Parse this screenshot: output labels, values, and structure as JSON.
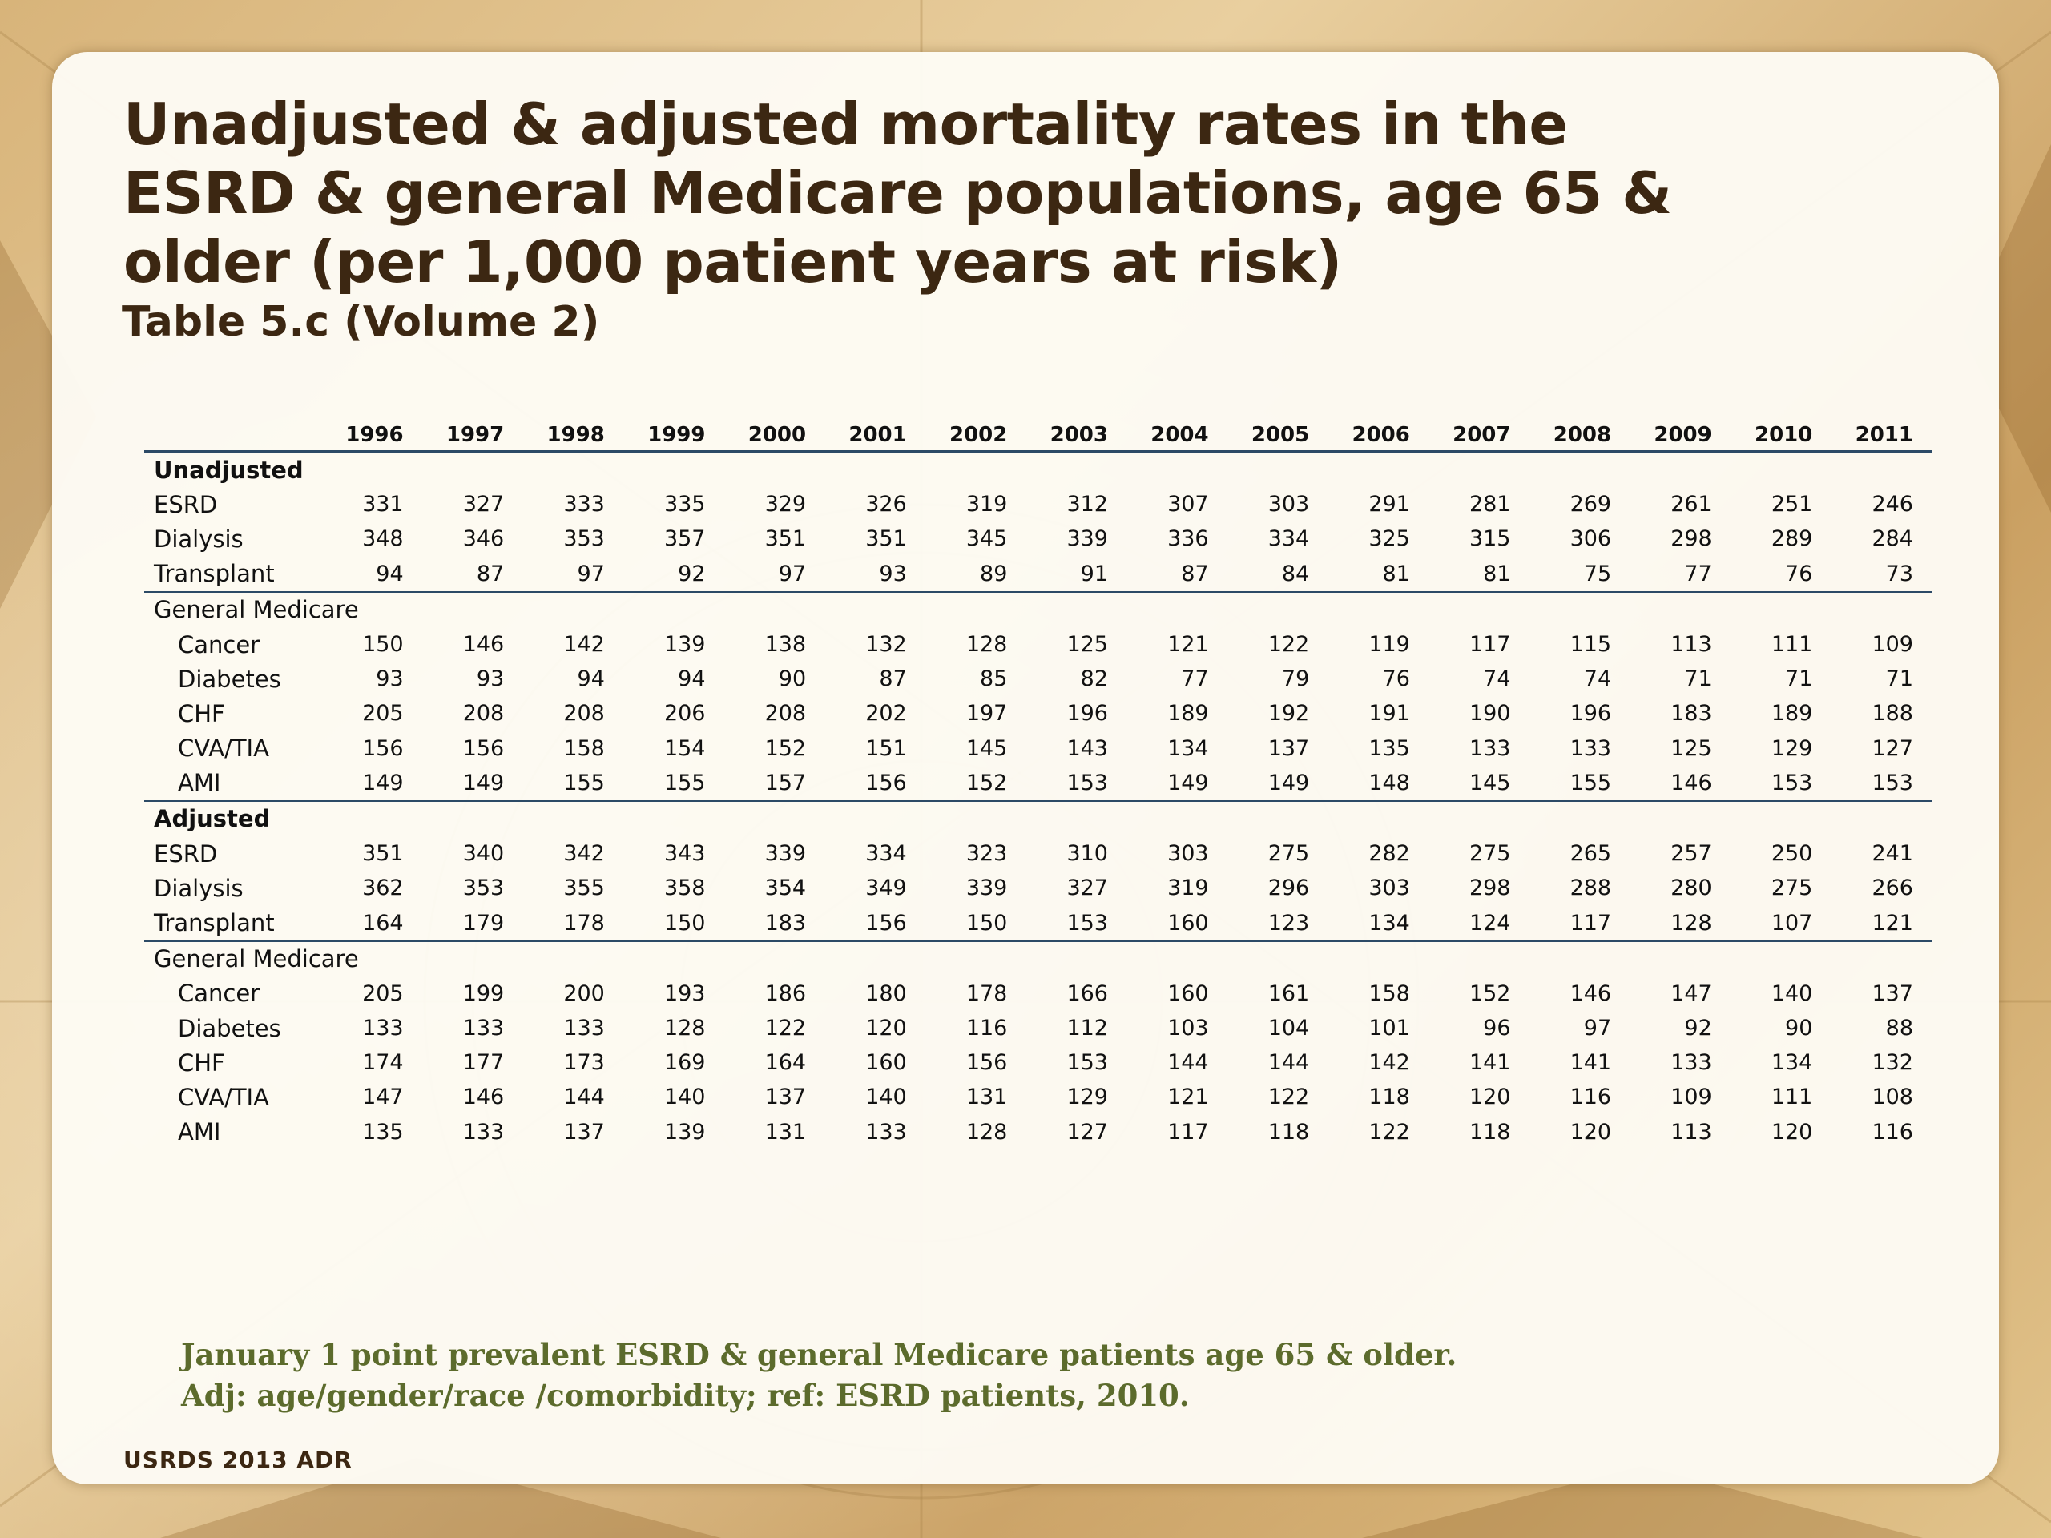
{
  "slide": {
    "title": "Unadjusted & adjusted mortality rates in the ESRD & general Medicare populations, age 65 & older (per 1,000 patient years at risk)",
    "subtitle": "Table 5.c (Volume 2)",
    "footnote_lines": [
      "January 1 point prevalent ESRD & general Medicare patients age 65 & older.",
      "Adj: age/gender/race /comorbidity; ref: ESRD patients, 2010."
    ],
    "source": "USRDS 2013 ADR"
  },
  "table": {
    "years": [
      "1996",
      "1997",
      "1998",
      "1999",
      "2000",
      "2001",
      "2002",
      "2003",
      "2004",
      "2005",
      "2006",
      "2007",
      "2008",
      "2009",
      "2010",
      "2011"
    ],
    "rows": [
      {
        "label": "Unadjusted",
        "type": "section",
        "values": []
      },
      {
        "label": "ESRD",
        "type": "row",
        "values": [
          "331",
          "327",
          "333",
          "335",
          "329",
          "326",
          "319",
          "312",
          "307",
          "303",
          "291",
          "281",
          "269",
          "261",
          "251",
          "246"
        ]
      },
      {
        "label": "Dialysis",
        "type": "row",
        "values": [
          "348",
          "346",
          "353",
          "357",
          "351",
          "351",
          "345",
          "339",
          "336",
          "334",
          "325",
          "315",
          "306",
          "298",
          "289",
          "284"
        ]
      },
      {
        "label": "Transplant",
        "type": "row",
        "rule": true,
        "values": [
          "94",
          "87",
          "97",
          "92",
          "97",
          "93",
          "89",
          "91",
          "87",
          "84",
          "81",
          "81",
          "75",
          "77",
          "76",
          "73"
        ]
      },
      {
        "label": "General Medicare",
        "type": "group",
        "values": []
      },
      {
        "label": "Cancer",
        "type": "sub",
        "values": [
          "150",
          "146",
          "142",
          "139",
          "138",
          "132",
          "128",
          "125",
          "121",
          "122",
          "119",
          "117",
          "115",
          "113",
          "111",
          "109"
        ]
      },
      {
        "label": "Diabetes",
        "type": "sub",
        "values": [
          "93",
          "93",
          "94",
          "94",
          "90",
          "87",
          "85",
          "82",
          "77",
          "79",
          "76",
          "74",
          "74",
          "71",
          "71",
          "71"
        ]
      },
      {
        "label": "CHF",
        "type": "sub",
        "values": [
          "205",
          "208",
          "208",
          "206",
          "208",
          "202",
          "197",
          "196",
          "189",
          "192",
          "191",
          "190",
          "196",
          "183",
          "189",
          "188"
        ]
      },
      {
        "label": "CVA/TIA",
        "type": "sub",
        "values": [
          "156",
          "156",
          "158",
          "154",
          "152",
          "151",
          "145",
          "143",
          "134",
          "137",
          "135",
          "133",
          "133",
          "125",
          "129",
          "127"
        ]
      },
      {
        "label": "AMI",
        "type": "sub",
        "rule": true,
        "values": [
          "149",
          "149",
          "155",
          "155",
          "157",
          "156",
          "152",
          "153",
          "149",
          "149",
          "148",
          "145",
          "155",
          "146",
          "153",
          "153"
        ]
      },
      {
        "label": "Adjusted",
        "type": "section",
        "values": []
      },
      {
        "label": "ESRD",
        "type": "row",
        "values": [
          "351",
          "340",
          "342",
          "343",
          "339",
          "334",
          "323",
          "310",
          "303",
          "275",
          "282",
          "275",
          "265",
          "257",
          "250",
          "241"
        ]
      },
      {
        "label": "Dialysis",
        "type": "row",
        "values": [
          "362",
          "353",
          "355",
          "358",
          "354",
          "349",
          "339",
          "327",
          "319",
          "296",
          "303",
          "298",
          "288",
          "280",
          "275",
          "266"
        ]
      },
      {
        "label": "Transplant",
        "type": "row",
        "rule": true,
        "values": [
          "164",
          "179",
          "178",
          "150",
          "183",
          "156",
          "150",
          "153",
          "160",
          "123",
          "134",
          "124",
          "117",
          "128",
          "107",
          "121"
        ]
      },
      {
        "label": "General Medicare",
        "type": "group",
        "values": []
      },
      {
        "label": "Cancer",
        "type": "sub",
        "values": [
          "205",
          "199",
          "200",
          "193",
          "186",
          "180",
          "178",
          "166",
          "160",
          "161",
          "158",
          "152",
          "146",
          "147",
          "140",
          "137"
        ]
      },
      {
        "label": "Diabetes",
        "type": "sub",
        "values": [
          "133",
          "133",
          "133",
          "128",
          "122",
          "120",
          "116",
          "112",
          "103",
          "104",
          "101",
          "96",
          "97",
          "92",
          "90",
          "88"
        ]
      },
      {
        "label": "CHF",
        "type": "sub",
        "values": [
          "174",
          "177",
          "173",
          "169",
          "164",
          "160",
          "156",
          "153",
          "144",
          "144",
          "142",
          "141",
          "141",
          "133",
          "134",
          "132"
        ]
      },
      {
        "label": "CVA/TIA",
        "type": "sub",
        "values": [
          "147",
          "146",
          "144",
          "140",
          "137",
          "140",
          "131",
          "129",
          "121",
          "122",
          "118",
          "120",
          "116",
          "109",
          "111",
          "108"
        ]
      },
      {
        "label": "AMI",
        "type": "sub",
        "values": [
          "135",
          "133",
          "137",
          "139",
          "131",
          "133",
          "128",
          "127",
          "117",
          "118",
          "122",
          "118",
          "120",
          "113",
          "120",
          "116"
        ]
      }
    ]
  }
}
